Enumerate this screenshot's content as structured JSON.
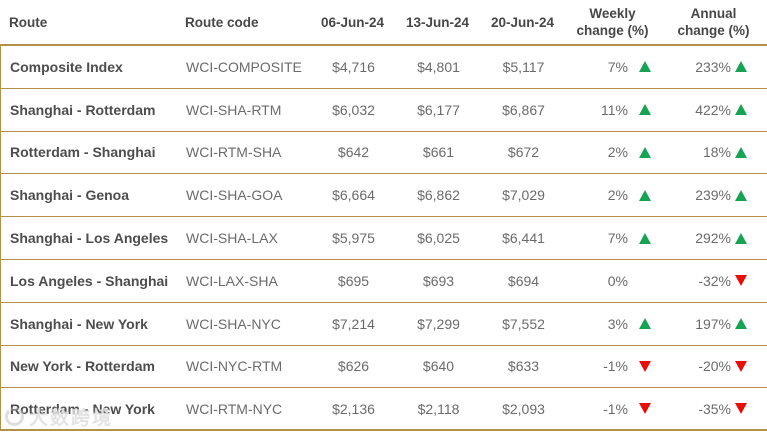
{
  "colors": {
    "border-gold": "#b29147",
    "header-text": "#474747",
    "route-text": "#4d4d4d",
    "value-text": "#6b6b6b",
    "up-green": "#16a354",
    "down-red": "#e90d08",
    "bg": "#ffffff"
  },
  "header": {
    "route": "Route",
    "route_code": "Route code",
    "date1": "06-Jun-24",
    "date2": "13-Jun-24",
    "date3": "20-Jun-24",
    "weekly_line1": "Weekly",
    "weekly_line2": "change (%)",
    "annual_line1": "Annual",
    "annual_line2": "change (%)"
  },
  "chart_data": {
    "type": "table",
    "columns": [
      "Route",
      "Route code",
      "06-Jun-24",
      "13-Jun-24",
      "20-Jun-24",
      "Weekly change (%)",
      "Annual change (%)"
    ],
    "rows": [
      {
        "route": "Composite Index",
        "code": "WCI-COMPOSITE",
        "d1": "$4,716",
        "d2": "$4,801",
        "d3": "$5,117",
        "weekly": "7%",
        "weekly_dir": "up",
        "annual": "233%",
        "annual_dir": "up"
      },
      {
        "route": "Shanghai - Rotterdam",
        "code": "WCI-SHA-RTM",
        "d1": "$6,032",
        "d2": "$6,177",
        "d3": "$6,867",
        "weekly": "11%",
        "weekly_dir": "up",
        "annual": "422%",
        "annual_dir": "up"
      },
      {
        "route": "Rotterdam - Shanghai",
        "code": "WCI-RTM-SHA",
        "d1": "$642",
        "d2": "$661",
        "d3": "$672",
        "weekly": "2%",
        "weekly_dir": "up",
        "annual": "18%",
        "annual_dir": "up"
      },
      {
        "route": "Shanghai - Genoa",
        "code": "WCI-SHA-GOA",
        "d1": "$6,664",
        "d2": "$6,862",
        "d3": "$7,029",
        "weekly": "2%",
        "weekly_dir": "up",
        "annual": "239%",
        "annual_dir": "up"
      },
      {
        "route": "Shanghai - Los Angeles",
        "code": "WCI-SHA-LAX",
        "d1": "$5,975",
        "d2": "$6,025",
        "d3": "$6,441",
        "weekly": "7%",
        "weekly_dir": "up",
        "annual": "292%",
        "annual_dir": "up"
      },
      {
        "route": "Los Angeles - Shanghai",
        "code": "WCI-LAX-SHA",
        "d1": "$695",
        "d2": "$693",
        "d3": "$694",
        "weekly": "0%",
        "weekly_dir": "none",
        "annual": "-32%",
        "annual_dir": "down"
      },
      {
        "route": "Shanghai - New York",
        "code": "WCI-SHA-NYC",
        "d1": "$7,214",
        "d2": "$7,299",
        "d3": "$7,552",
        "weekly": "3%",
        "weekly_dir": "up",
        "annual": "197%",
        "annual_dir": "up"
      },
      {
        "route": "New York - Rotterdam",
        "code": "WCI-NYC-RTM",
        "d1": "$626",
        "d2": "$640",
        "d3": "$633",
        "weekly": "-1%",
        "weekly_dir": "down",
        "annual": "-20%",
        "annual_dir": "down"
      },
      {
        "route": "Rotterdam - New York",
        "code": "WCI-RTM-NYC",
        "d1": "$2,136",
        "d2": "$2,118",
        "d3": "$2,093",
        "weekly": "-1%",
        "weekly_dir": "down",
        "annual": "-35%",
        "annual_dir": "down"
      }
    ]
  },
  "watermark": {
    "text": "大数跨境"
  }
}
